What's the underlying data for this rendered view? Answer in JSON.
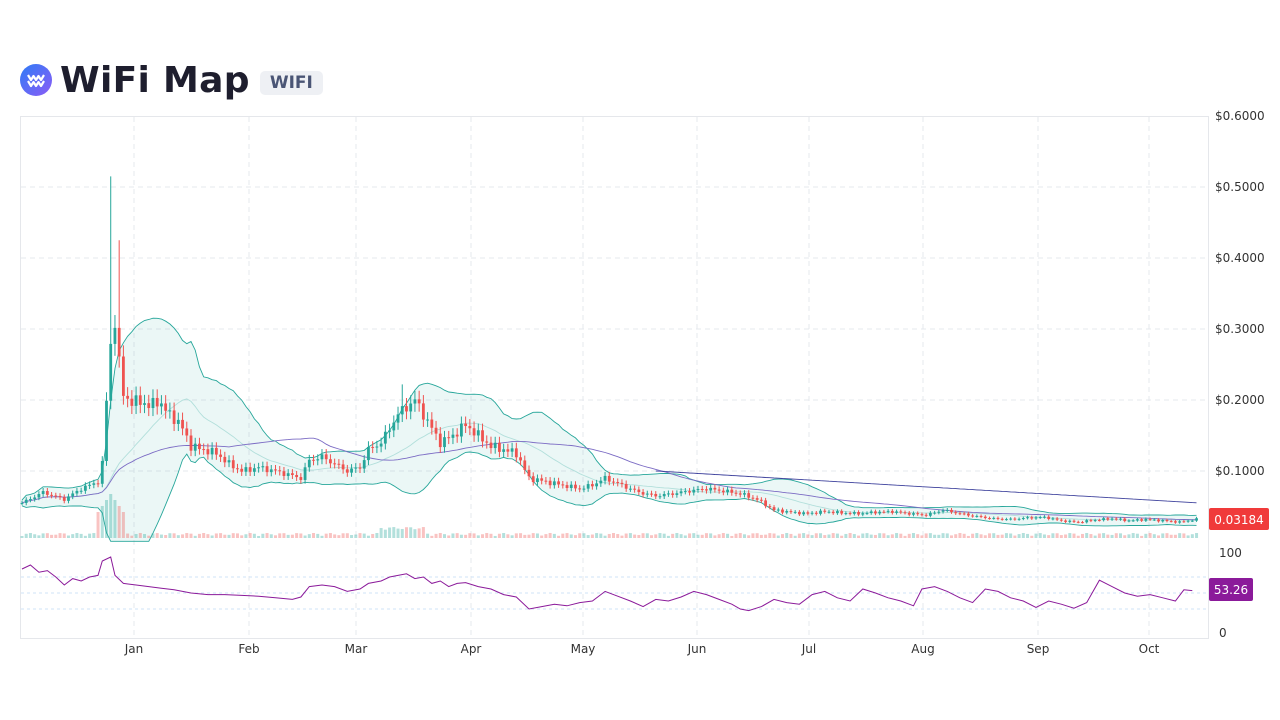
{
  "header": {
    "title": "WiFi Map",
    "ticker": "WIFI",
    "logo_colors": [
      "#2f7cf6",
      "#8b5cf6"
    ]
  },
  "chart_data": {
    "type": "candlestick",
    "title": "WiFi Map",
    "price_axis": {
      "min": 0,
      "max": 0.6,
      "ticks": [
        "$0.6000",
        "$0.5000",
        "$0.4000",
        "$0.3000",
        "$0.2000",
        "$0.1000"
      ]
    },
    "rsi_axis": {
      "min": 0,
      "max": 100,
      "ticks": [
        "100",
        "0"
      ],
      "bands": [
        30,
        50,
        70
      ]
    },
    "x_axis": {
      "labels": [
        "Jan",
        "Feb",
        "Mar",
        "Apr",
        "May",
        "Jun",
        "Jul",
        "Aug",
        "Sep",
        "Oct"
      ]
    },
    "last_price": "0.03184",
    "last_rsi": "53.26",
    "price_series": [
      [
        0,
        0.055
      ],
      [
        5,
        0.07
      ],
      [
        10,
        0.06
      ],
      [
        14,
        0.075
      ],
      [
        18,
        0.085
      ],
      [
        19,
        0.11
      ],
      [
        20,
        0.2
      ],
      [
        21,
        0.28
      ],
      [
        22,
        0.31
      ],
      [
        23,
        0.25
      ],
      [
        24,
        0.21
      ],
      [
        26,
        0.195
      ],
      [
        28,
        0.2
      ],
      [
        30,
        0.19
      ],
      [
        32,
        0.2
      ],
      [
        34,
        0.185
      ],
      [
        36,
        0.175
      ],
      [
        38,
        0.16
      ],
      [
        40,
        0.135
      ],
      [
        43,
        0.13
      ],
      [
        46,
        0.125
      ],
      [
        49,
        0.11
      ],
      [
        52,
        0.1
      ],
      [
        56,
        0.105
      ],
      [
        60,
        0.1
      ],
      [
        63,
        0.095
      ],
      [
        66,
        0.09
      ],
      [
        68,
        0.115
      ],
      [
        71,
        0.12
      ],
      [
        74,
        0.11
      ],
      [
        77,
        0.1
      ],
      [
        80,
        0.105
      ],
      [
        82,
        0.13
      ],
      [
        85,
        0.14
      ],
      [
        87,
        0.16
      ],
      [
        89,
        0.18
      ],
      [
        91,
        0.19
      ],
      [
        93,
        0.2
      ],
      [
        95,
        0.18
      ],
      [
        97,
        0.16
      ],
      [
        99,
        0.14
      ],
      [
        102,
        0.15
      ],
      [
        105,
        0.165
      ],
      [
        108,
        0.15
      ],
      [
        111,
        0.135
      ],
      [
        114,
        0.13
      ],
      [
        117,
        0.125
      ],
      [
        120,
        0.09
      ],
      [
        124,
        0.085
      ],
      [
        128,
        0.08
      ],
      [
        132,
        0.075
      ],
      [
        135,
        0.08
      ],
      [
        138,
        0.09
      ],
      [
        142,
        0.08
      ],
      [
        146,
        0.07
      ],
      [
        150,
        0.065
      ],
      [
        154,
        0.068
      ],
      [
        158,
        0.072
      ],
      [
        162,
        0.075
      ],
      [
        166,
        0.072
      ],
      [
        170,
        0.068
      ],
      [
        174,
        0.06
      ],
      [
        178,
        0.045
      ],
      [
        182,
        0.042
      ],
      [
        186,
        0.04
      ],
      [
        190,
        0.043
      ],
      [
        194,
        0.041
      ],
      [
        198,
        0.04
      ],
      [
        202,
        0.042
      ],
      [
        206,
        0.043
      ],
      [
        210,
        0.04
      ],
      [
        214,
        0.038
      ],
      [
        218,
        0.045
      ],
      [
        222,
        0.04
      ],
      [
        226,
        0.036
      ],
      [
        230,
        0.033
      ],
      [
        234,
        0.032
      ],
      [
        238,
        0.034
      ],
      [
        242,
        0.035
      ],
      [
        246,
        0.03
      ],
      [
        250,
        0.028
      ],
      [
        254,
        0.031
      ],
      [
        258,
        0.033
      ],
      [
        262,
        0.03
      ],
      [
        266,
        0.032
      ],
      [
        270,
        0.03
      ],
      [
        274,
        0.028
      ],
      [
        278,
        0.032
      ]
    ],
    "spikes": [
      {
        "day": 21,
        "high": 0.515
      },
      {
        "day": 23,
        "high": 0.425
      },
      {
        "day": 90,
        "high": 0.222
      }
    ],
    "rsi_series": [
      [
        0,
        80
      ],
      [
        2,
        85
      ],
      [
        4,
        76
      ],
      [
        6,
        78
      ],
      [
        8,
        70
      ],
      [
        10,
        60
      ],
      [
        12,
        68
      ],
      [
        14,
        65
      ],
      [
        16,
        70
      ],
      [
        18,
        72
      ],
      [
        19,
        90
      ],
      [
        21,
        95
      ],
      [
        22,
        72
      ],
      [
        24,
        62
      ],
      [
        27,
        60
      ],
      [
        30,
        58
      ],
      [
        33,
        56
      ],
      [
        36,
        54
      ],
      [
        40,
        50
      ],
      [
        44,
        48
      ],
      [
        48,
        48
      ],
      [
        52,
        47
      ],
      [
        56,
        46
      ],
      [
        60,
        44
      ],
      [
        64,
        42
      ],
      [
        66,
        45
      ],
      [
        68,
        58
      ],
      [
        71,
        60
      ],
      [
        74,
        58
      ],
      [
        77,
        52
      ],
      [
        80,
        55
      ],
      [
        82,
        62
      ],
      [
        85,
        65
      ],
      [
        87,
        70
      ],
      [
        89,
        72
      ],
      [
        91,
        74
      ],
      [
        93,
        68
      ],
      [
        95,
        70
      ],
      [
        97,
        62
      ],
      [
        99,
        65
      ],
      [
        101,
        58
      ],
      [
        103,
        62
      ],
      [
        105,
        63
      ],
      [
        108,
        58
      ],
      [
        111,
        55
      ],
      [
        114,
        48
      ],
      [
        117,
        45
      ],
      [
        120,
        30
      ],
      [
        123,
        33
      ],
      [
        126,
        36
      ],
      [
        129,
        34
      ],
      [
        132,
        38
      ],
      [
        135,
        40
      ],
      [
        138,
        52
      ],
      [
        141,
        46
      ],
      [
        144,
        40
      ],
      [
        147,
        33
      ],
      [
        150,
        42
      ],
      [
        153,
        40
      ],
      [
        156,
        45
      ],
      [
        159,
        52
      ],
      [
        162,
        48
      ],
      [
        165,
        42
      ],
      [
        168,
        36
      ],
      [
        170,
        30
      ],
      [
        172,
        28
      ],
      [
        175,
        33
      ],
      [
        178,
        42
      ],
      [
        181,
        38
      ],
      [
        184,
        36
      ],
      [
        187,
        48
      ],
      [
        190,
        52
      ],
      [
        193,
        44
      ],
      [
        196,
        40
      ],
      [
        199,
        55
      ],
      [
        202,
        50
      ],
      [
        205,
        44
      ],
      [
        208,
        40
      ],
      [
        211,
        34
      ],
      [
        213,
        55
      ],
      [
        216,
        58
      ],
      [
        219,
        52
      ],
      [
        222,
        44
      ],
      [
        225,
        38
      ],
      [
        228,
        55
      ],
      [
        231,
        52
      ],
      [
        234,
        44
      ],
      [
        237,
        40
      ],
      [
        240,
        32
      ],
      [
        243,
        40
      ],
      [
        246,
        36
      ],
      [
        249,
        31
      ],
      [
        252,
        38
      ],
      [
        255,
        66
      ],
      [
        258,
        58
      ],
      [
        261,
        50
      ],
      [
        264,
        46
      ],
      [
        267,
        48
      ],
      [
        270,
        44
      ],
      [
        273,
        40
      ],
      [
        275,
        54
      ],
      [
        277,
        53
      ]
    ]
  }
}
